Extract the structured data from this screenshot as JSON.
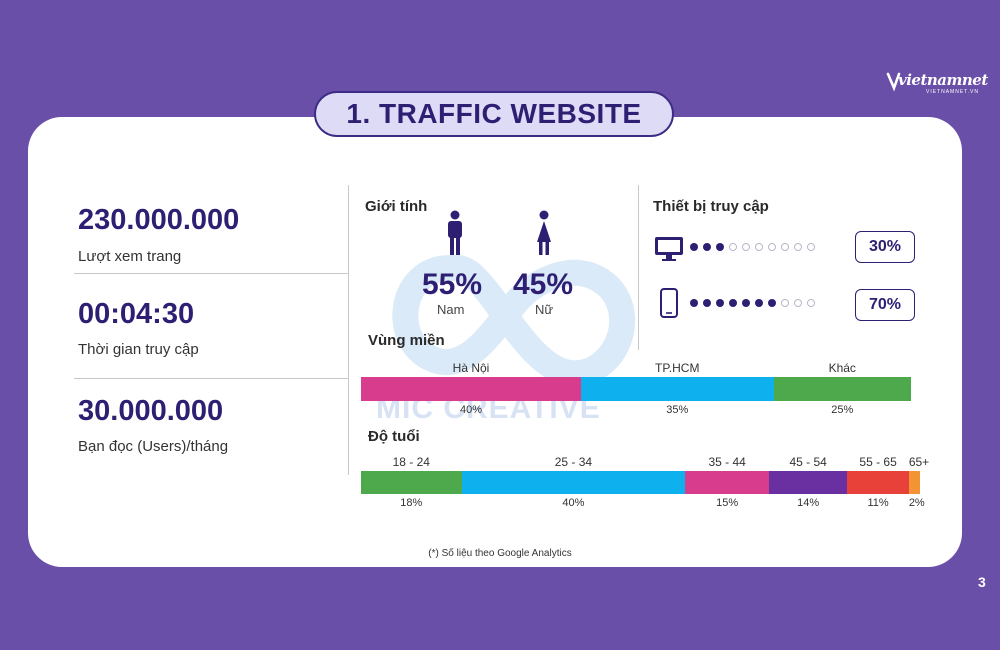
{
  "logo": {
    "name": "vietnamnet",
    "sub": "VIETNAMNET.VN"
  },
  "title": "1. TRAFFIC WEBSITE",
  "watermark": "MIC CREATIVE",
  "stats": [
    {
      "value": "230.000.000",
      "label": "Lượt xem trang"
    },
    {
      "value": "00:04:30",
      "label": "Thời gian truy cập"
    },
    {
      "value": "30.000.000",
      "label": "Bạn đọc (Users)/tháng"
    }
  ],
  "gender": {
    "title": "Giới tính",
    "male": {
      "pct": "55%",
      "label": "Nam",
      "icon": "male-icon"
    },
    "female": {
      "pct": "45%",
      "label": "Nữ",
      "icon": "female-icon"
    }
  },
  "devices": {
    "title": "Thiết bị truy cập",
    "desktop": {
      "pct": "30%",
      "filled": 3,
      "total": 10,
      "icon": "monitor-icon"
    },
    "mobile": {
      "pct": "70%",
      "filled": 7,
      "total": 10,
      "icon": "smartphone-icon"
    }
  },
  "region": {
    "title": "Vùng miền",
    "segments": [
      {
        "name": "Hà Nội",
        "pct": "40%",
        "value": 40,
        "color": "#d83c8c"
      },
      {
        "name": "TP.HCM",
        "pct": "35%",
        "value": 35,
        "color": "#0eb0ee"
      },
      {
        "name": "Khác",
        "pct": "25%",
        "value": 25,
        "color": "#4ea94c"
      }
    ]
  },
  "age": {
    "title": "Độ tuổi",
    "segments": [
      {
        "name": "18 - 24",
        "pct": "18%",
        "value": 18,
        "color": "#4ea94c"
      },
      {
        "name": "25 - 34",
        "pct": "40%",
        "value": 40,
        "color": "#0eb0ee"
      },
      {
        "name": "35 - 44",
        "pct": "15%",
        "value": 15,
        "color": "#d83c8c"
      },
      {
        "name": "45 - 54",
        "pct": "14%",
        "value": 14,
        "color": "#6a2fa0"
      },
      {
        "name": "55 - 65",
        "pct": "11%",
        "value": 11,
        "color": "#e8413a"
      },
      {
        "name": "65+",
        "pct": "2%",
        "value": 2,
        "color": "#f29433"
      }
    ]
  },
  "footnote": "(*) Số liệu theo Google Analytics",
  "page_number": "3"
}
